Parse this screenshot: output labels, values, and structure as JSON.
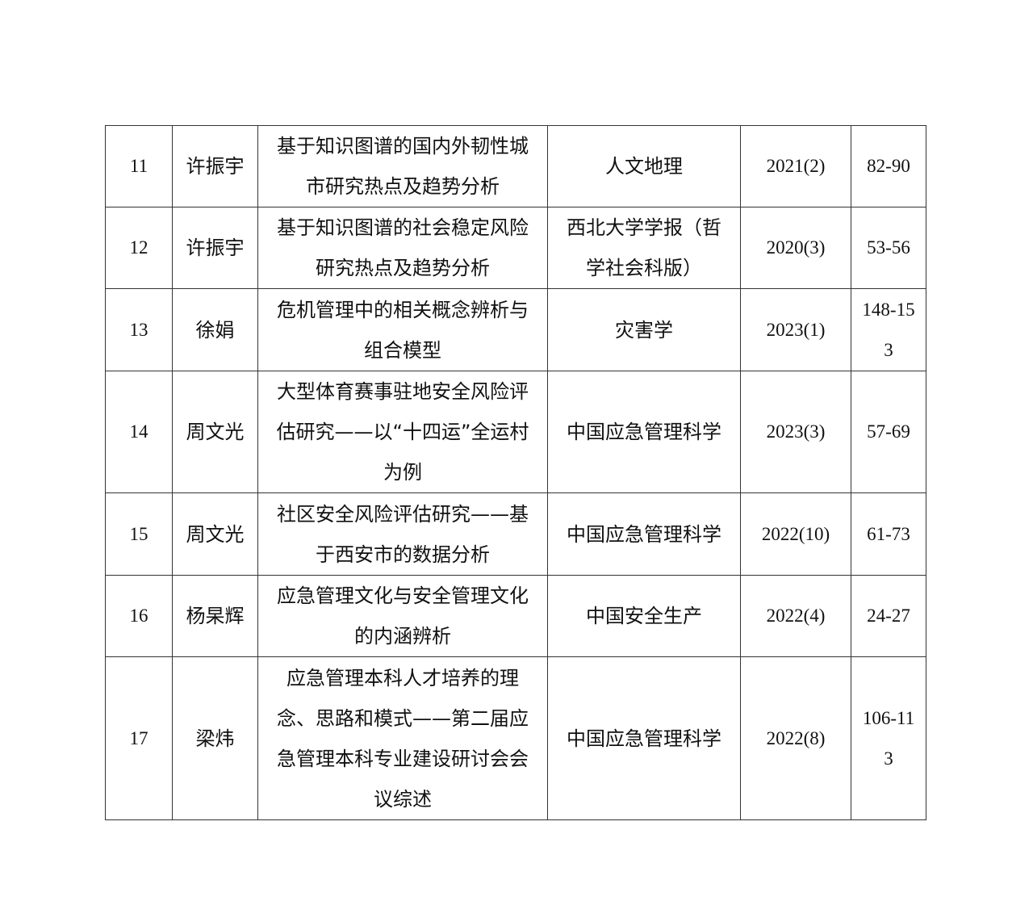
{
  "rows": [
    {
      "no": "11",
      "author": "许振宇",
      "title_lines": [
        "基于知识图谱的国内外韧性城",
        "市研究热点及趋势分析"
      ],
      "journal_lines": [
        "人文地理"
      ],
      "issue": "2021(2)",
      "pages": "82-90"
    },
    {
      "no": "12",
      "author": "许振宇",
      "title_lines": [
        "基于知识图谱的社会稳定风险",
        "研究热点及趋势分析"
      ],
      "journal_lines": [
        "西北大学学报（哲",
        "学社会科版）"
      ],
      "issue": "2020(3)",
      "pages": "53-56"
    },
    {
      "no": "13",
      "author": "徐娟",
      "title_lines": [
        "危机管理中的相关概念辨析与",
        "组合模型"
      ],
      "journal_lines": [
        "灾害学"
      ],
      "issue": "2023(1)",
      "pages": "148-153"
    },
    {
      "no": "14",
      "author": "周文光",
      "title_lines": [
        "大型体育赛事驻地安全风险评",
        "估研究——以“十四运”全运村",
        "为例"
      ],
      "journal_lines": [
        "中国应急管理科学"
      ],
      "issue": "2023(3)",
      "pages": "57-69"
    },
    {
      "no": "15",
      "author": "周文光",
      "title_lines": [
        "社区安全风险评估研究——基",
        "于西安市的数据分析"
      ],
      "journal_lines": [
        "中国应急管理科学"
      ],
      "issue": "2022(10)",
      "pages": "61-73"
    },
    {
      "no": "16",
      "author": "杨杲辉",
      "title_lines": [
        "应急管理文化与安全管理文化",
        "的内涵辨析"
      ],
      "journal_lines": [
        "中国安全生产"
      ],
      "issue": "2022(4)",
      "pages": "24-27"
    },
    {
      "no": "17",
      "author": "梁炜",
      "title_lines": [
        "应急管理本科人才培养的理",
        "念、思路和模式——第二届应",
        "急管理本科专业建设研讨会会",
        "议综述"
      ],
      "journal_lines": [
        "中国应急管理科学"
      ],
      "issue": "2022(8)",
      "pages": "106-113"
    }
  ]
}
